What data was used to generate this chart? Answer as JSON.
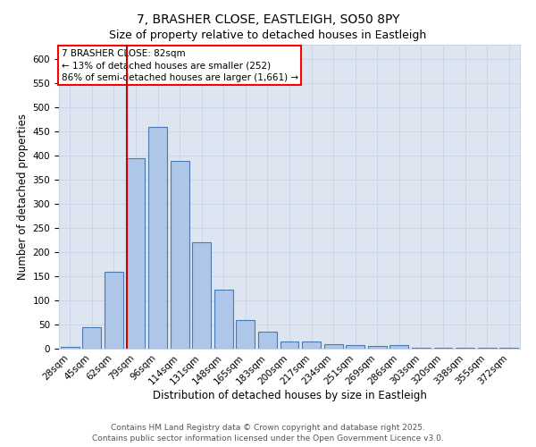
{
  "title_line1": "7, BRASHER CLOSE, EASTLEIGH, SO50 8PY",
  "title_line2": "Size of property relative to detached houses in Eastleigh",
  "xlabel": "Distribution of detached houses by size in Eastleigh",
  "ylabel": "Number of detached properties",
  "bar_labels": [
    "28sqm",
    "45sqm",
    "62sqm",
    "79sqm",
    "96sqm",
    "114sqm",
    "131sqm",
    "148sqm",
    "165sqm",
    "183sqm",
    "200sqm",
    "217sqm",
    "234sqm",
    "251sqm",
    "269sqm",
    "286sqm",
    "303sqm",
    "320sqm",
    "338sqm",
    "355sqm",
    "372sqm"
  ],
  "bar_values": [
    4,
    45,
    160,
    395,
    460,
    390,
    220,
    122,
    60,
    35,
    15,
    15,
    10,
    7,
    5,
    7,
    2,
    1,
    1,
    1,
    1
  ],
  "bar_color": "#aec6e8",
  "bar_edge_color": "#4c7ab0",
  "bar_width": 0.85,
  "vline_x_index": 3,
  "vline_color": "#cc0000",
  "annotation_line1": "7 BRASHER CLOSE: 82sqm",
  "annotation_line2": "← 13% of detached houses are smaller (252)",
  "annotation_line3": "86% of semi-detached houses are larger (1,661) →",
  "ylim": [
    0,
    630
  ],
  "yticks": [
    0,
    50,
    100,
    150,
    200,
    250,
    300,
    350,
    400,
    450,
    500,
    550,
    600
  ],
  "grid_color": "#c8d4e8",
  "bg_color": "#dde6f0",
  "footer_text": "Contains HM Land Registry data © Crown copyright and database right 2025.\nContains public sector information licensed under the Open Government Licence v3.0.",
  "title_fontsize": 10,
  "subtitle_fontsize": 9,
  "axis_label_fontsize": 8.5,
  "tick_fontsize": 7.5,
  "annotation_fontsize": 7.5,
  "footer_fontsize": 6.5
}
